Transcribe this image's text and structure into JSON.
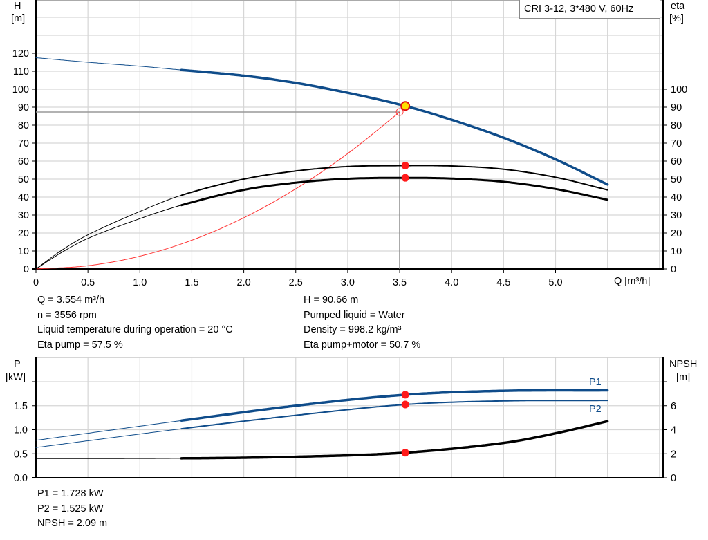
{
  "chart_data": [
    {
      "type": "line",
      "title": "CRI 3-12, 3*480 V, 60Hz",
      "xlabel": "Q [m³/h]",
      "ylabel_left": [
        "H",
        "[m]"
      ],
      "ylabel_right": [
        "eta",
        "[%]"
      ],
      "xlim": [
        0,
        6
      ],
      "ylim": [
        0,
        150
      ],
      "x_ticks": [
        "0",
        "0.5",
        "1.0",
        "1.5",
        "2.0",
        "2.5",
        "3.0",
        "3.5",
        "4.0",
        "4.5",
        "5.0"
      ],
      "y_ticks_left": [
        "0",
        "10",
        "20",
        "30",
        "40",
        "50",
        "60",
        "70",
        "80",
        "90",
        "100",
        "110",
        "120"
      ],
      "y_ticks_right": [
        "0",
        "10",
        "20",
        "30",
        "40",
        "50",
        "60",
        "70",
        "80",
        "90",
        "100"
      ],
      "grid": true,
      "series": [
        {
          "key": "H",
          "color": "#0f4c8a",
          "points": [
            [
              0,
              117.5
            ],
            [
              0.5,
              115
            ],
            [
              1.0,
              112.8
            ],
            [
              1.4,
              110.7
            ],
            [
              2.0,
              107.5
            ],
            [
              2.5,
              103.5
            ],
            [
              3.0,
              98
            ],
            [
              3.554,
              90.66
            ],
            [
              4.0,
              83
            ],
            [
              4.5,
              73
            ],
            [
              5.0,
              61
            ],
            [
              5.5,
              47
            ]
          ]
        },
        {
          "key": "eta_pump",
          "color": "#000000",
          "points": [
            [
              0,
              0
            ],
            [
              0.25,
              10.5
            ],
            [
              0.5,
              19
            ],
            [
              1.0,
              32
            ],
            [
              1.4,
              41
            ],
            [
              2.0,
              50
            ],
            [
              2.5,
              54.5
            ],
            [
              3.0,
              57
            ],
            [
              3.554,
              57.5
            ],
            [
              4.0,
              57.3
            ],
            [
              4.5,
              55.5
            ],
            [
              5.0,
              51
            ],
            [
              5.5,
              44
            ]
          ]
        },
        {
          "key": "eta_pump_motor",
          "color": "#000000",
          "points": [
            [
              0,
              0
            ],
            [
              0.25,
              9.3
            ],
            [
              0.5,
              17
            ],
            [
              1.0,
              28
            ],
            [
              1.4,
              35.5
            ],
            [
              2.0,
              44
            ],
            [
              2.5,
              48
            ],
            [
              3.0,
              50.2
            ],
            [
              3.554,
              50.7
            ],
            [
              4.0,
              50.3
            ],
            [
              4.5,
              48.5
            ],
            [
              5.0,
              44.5
            ],
            [
              5.5,
              38.5
            ]
          ]
        },
        {
          "key": "system",
          "color": "#ff3030",
          "points": [
            [
              0,
              0
            ],
            [
              0.5,
              1.8
            ],
            [
              1.0,
              7.1
            ],
            [
              1.5,
              16
            ],
            [
              2.0,
              28.5
            ],
            [
              2.5,
              44.6
            ],
            [
              3.0,
              64.2
            ],
            [
              3.5,
              87.3
            ]
          ]
        }
      ],
      "duty_point": {
        "Q": 3.554,
        "H": 90.66,
        "eta_pump": 57.5,
        "eta_pump_motor": 50.7
      },
      "requested_point": {
        "Q": 3.5,
        "H": 87.3
      }
    },
    {
      "type": "line",
      "ylabel_left": [
        "P",
        "[kW]"
      ],
      "ylabel_right": [
        "NPSH",
        "[m]"
      ],
      "xlim": [
        0,
        6
      ],
      "ylim_left": [
        0,
        2.5
      ],
      "ylim_right": [
        0,
        10
      ],
      "y_ticks_left": [
        "0.0",
        "0.5",
        "1.0",
        "1.5"
      ],
      "y_ticks_right": [
        "0",
        "2",
        "4",
        "6"
      ],
      "grid": true,
      "series": [
        {
          "key": "P1",
          "name": "P1",
          "color": "#0f4c8a",
          "points": [
            [
              0,
              0.78
            ],
            [
              1.4,
              1.19
            ],
            [
              2.5,
              1.5
            ],
            [
              3.554,
              1.728
            ],
            [
              4.5,
              1.81
            ],
            [
              5.5,
              1.82
            ]
          ]
        },
        {
          "key": "P2",
          "name": "P2",
          "color": "#0f4c8a",
          "points": [
            [
              0,
              0.63
            ],
            [
              1.4,
              1.02
            ],
            [
              2.5,
              1.3
            ],
            [
              3.554,
              1.525
            ],
            [
              4.5,
              1.6
            ],
            [
              5.5,
              1.61
            ]
          ]
        },
        {
          "key": "NPSH",
          "color": "#000000",
          "axis": "right",
          "points": [
            [
              0,
              1.6
            ],
            [
              1.4,
              1.62
            ],
            [
              2.5,
              1.75
            ],
            [
              3.554,
              2.09
            ],
            [
              4.5,
              2.9
            ],
            [
              5.0,
              3.7
            ],
            [
              5.5,
              4.7
            ]
          ]
        }
      ],
      "duty_point": {
        "Q": 3.554,
        "P1": 1.728,
        "P2": 1.525,
        "NPSH": 2.09
      }
    }
  ],
  "info_top_left": [
    "Q = 3.554 m³/h",
    "n = 3556 rpm",
    "Liquid temperature during operation = 20 °C",
    "Eta pump = 57.5 %"
  ],
  "info_top_right": [
    "H = 90.66 m",
    "Pumped liquid = Water",
    "Density = 998.2 kg/m³",
    "Eta pump+motor = 50.7 %"
  ],
  "info_bottom": [
    "P1 = 1.728 kW",
    "P2 = 1.525 kW",
    "NPSH = 2.09 m"
  ]
}
